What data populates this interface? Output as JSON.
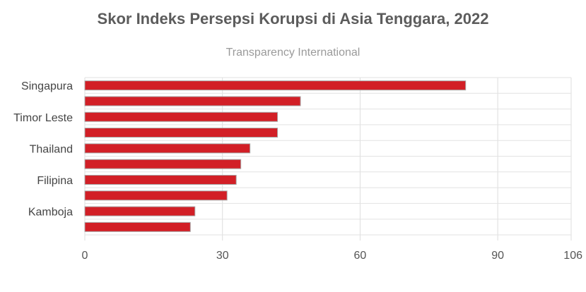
{
  "chart_data": {
    "type": "bar",
    "orientation": "horizontal",
    "title": "Skor Indeks Persepsi Korupsi di Asia Tenggara, 2022",
    "subtitle": "Transparency International",
    "categories": [
      "Singapura",
      "",
      "Timor Leste",
      "",
      "Thailand",
      "",
      "Filipina",
      "",
      "Kamboja",
      ""
    ],
    "values": [
      83,
      47,
      42,
      42,
      36,
      34,
      33,
      31,
      24,
      23
    ],
    "xlim": [
      0,
      106
    ],
    "xticks": [
      0,
      30,
      60,
      90,
      106
    ],
    "grid": true,
    "bar_color": "#d21f26"
  }
}
